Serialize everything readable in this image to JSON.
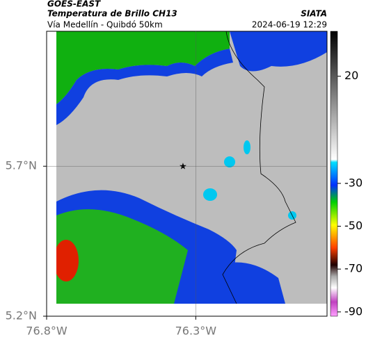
{
  "header": {
    "source": "GOES-EAST",
    "title": "Temperatura de Brillo CH13",
    "route": "Vía Medellín - Quibdó 50km",
    "org": "SIATA",
    "datetime": "2024-06-19 12:29"
  },
  "map": {
    "xlim": [
      -76.8,
      -75.86
    ],
    "ylim": [
      5.2,
      6.15
    ],
    "xticks": [
      {
        "value": -76.8,
        "label": "76.8°W"
      },
      {
        "value": -76.3,
        "label": "76.3°W"
      }
    ],
    "yticks": [
      {
        "value": 5.7,
        "label": "5.7°N"
      },
      {
        "value": 5.2,
        "label": "5.2°N"
      }
    ],
    "grid_lon": [
      -76.3
    ],
    "grid_lat": [
      5.7
    ]
  },
  "colorbar": {
    "clim": [
      -92,
      41
    ],
    "ticks": [
      20,
      -30,
      -50,
      -70,
      -90
    ]
  }
}
